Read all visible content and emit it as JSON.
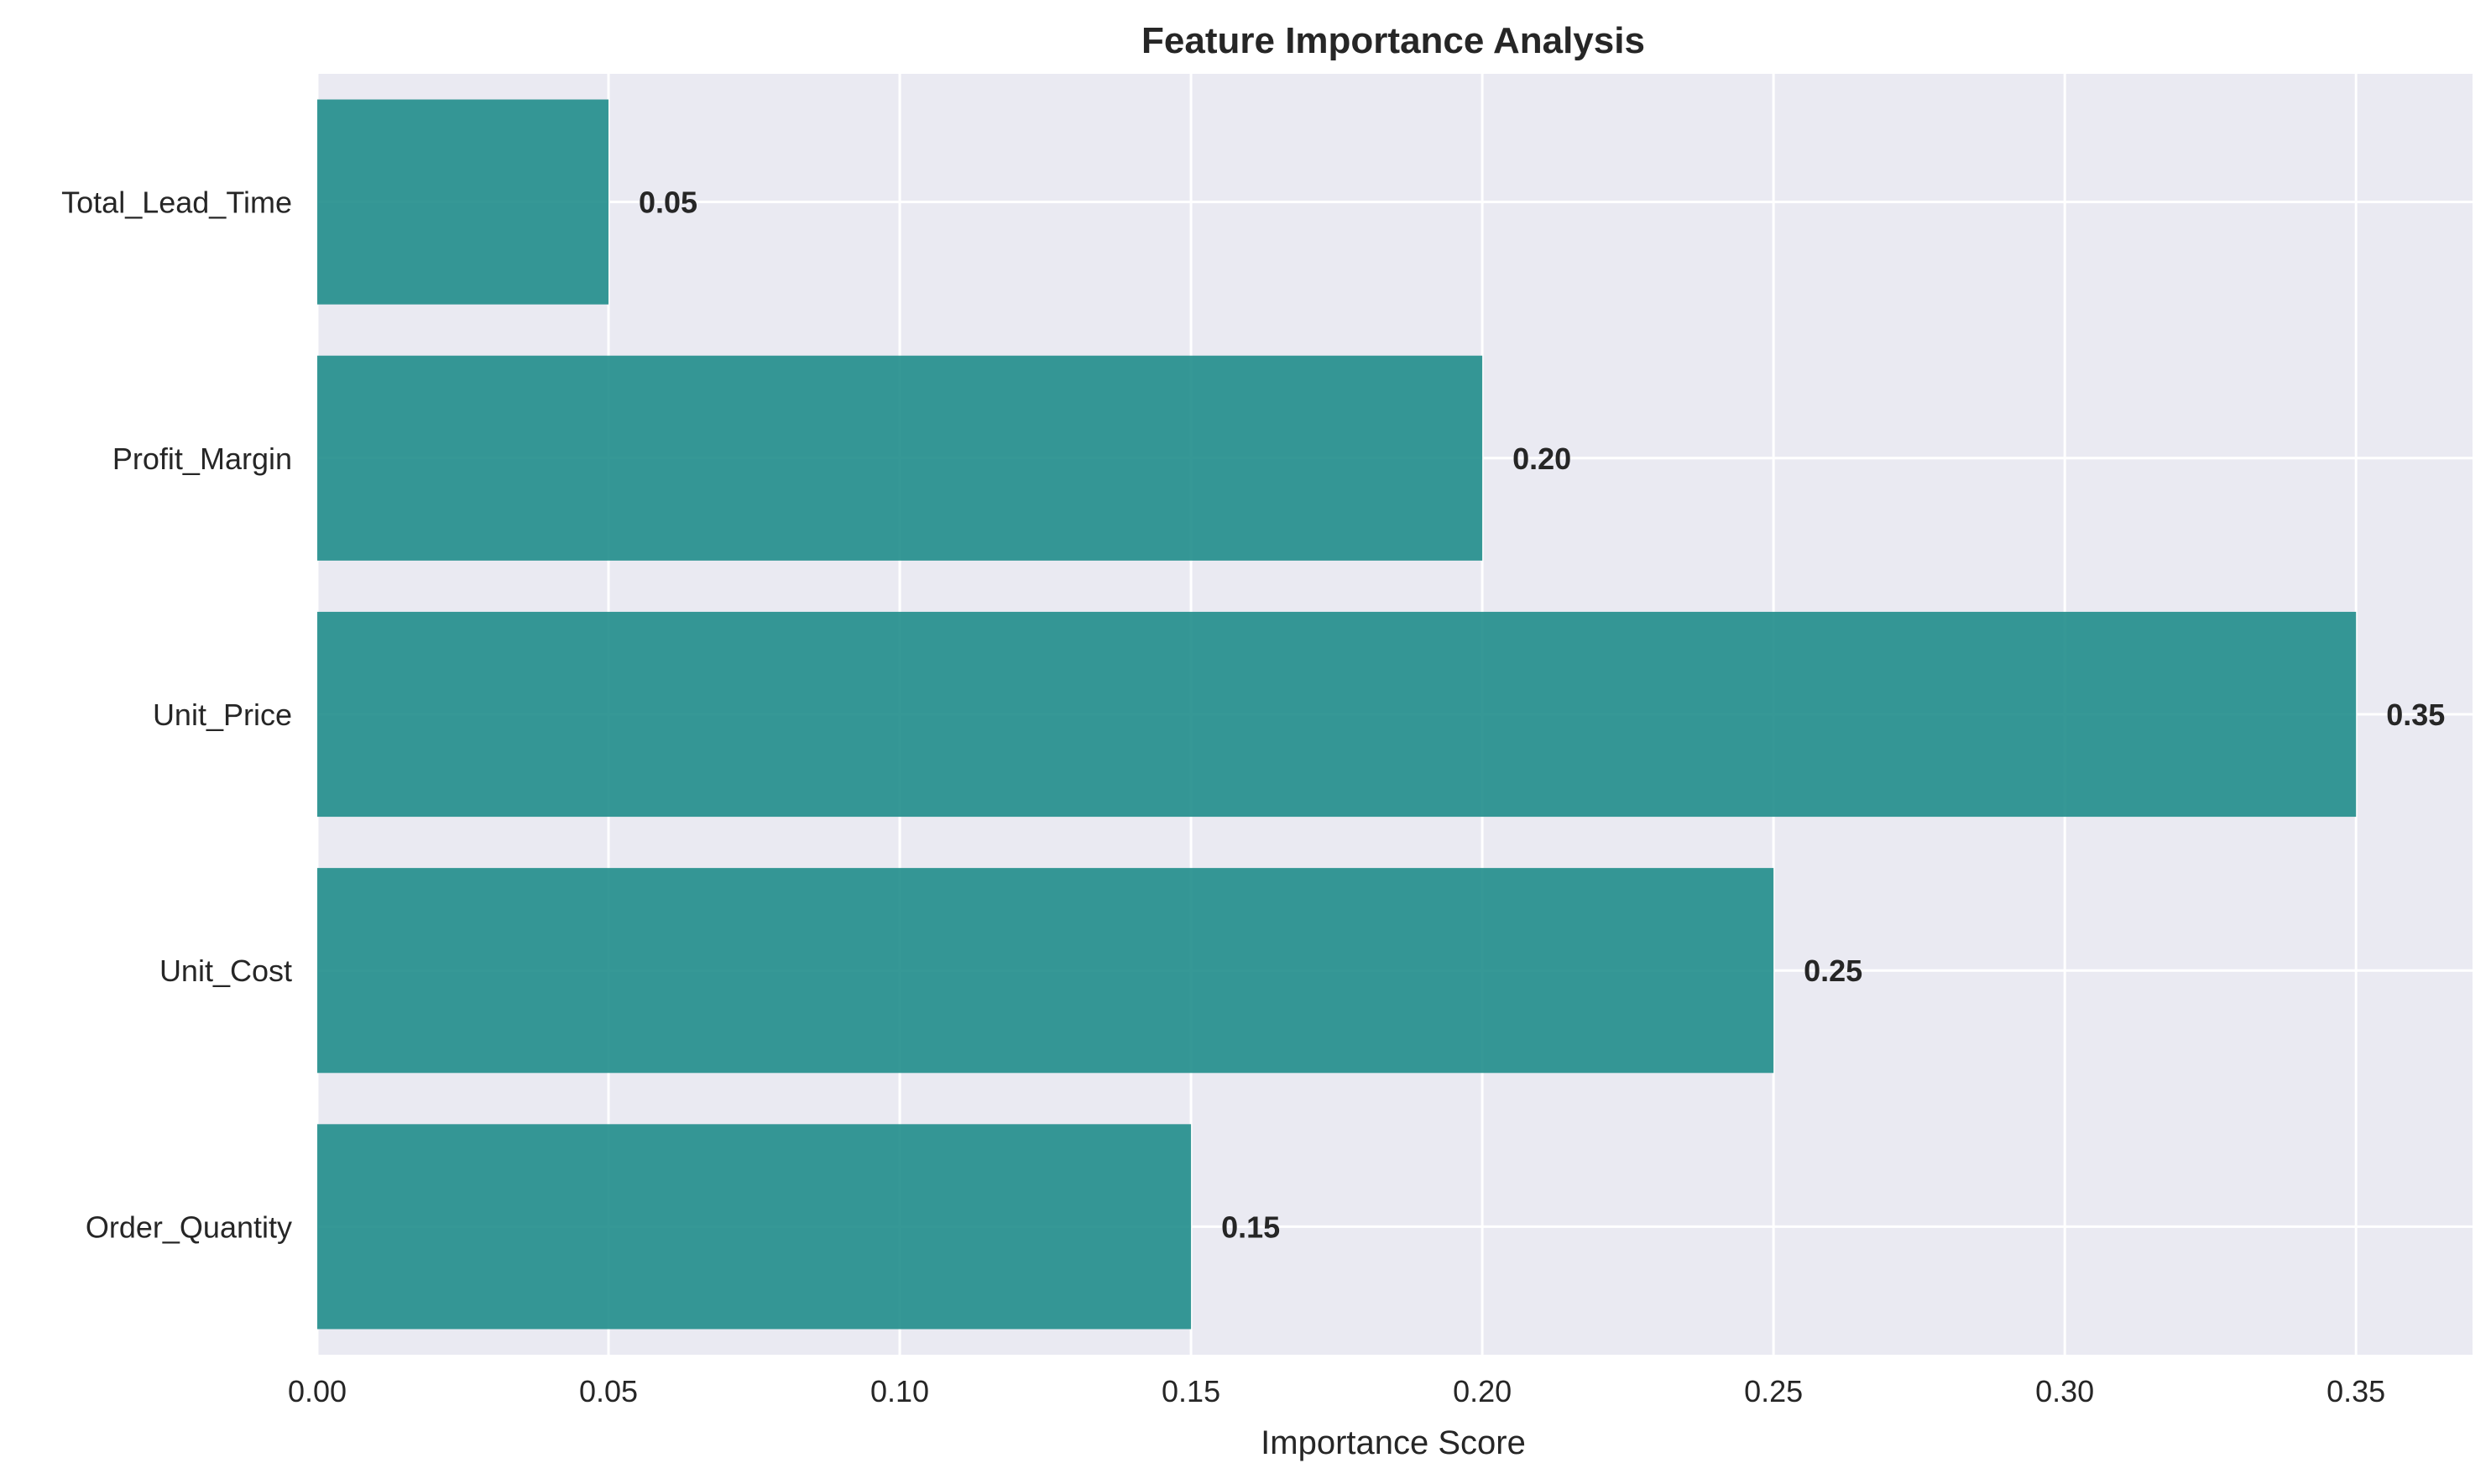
{
  "chart_data": {
    "type": "bar",
    "orientation": "horizontal",
    "title": "Feature Importance Analysis",
    "xlabel": "Importance Score",
    "ylabel": "",
    "categories": [
      "Order_Quantity",
      "Unit_Cost",
      "Unit_Price",
      "Profit_Margin",
      "Total_Lead_Time"
    ],
    "values": [
      0.15,
      0.25,
      0.35,
      0.2,
      0.05
    ],
    "value_labels": [
      "0.15",
      "0.25",
      "0.35",
      "0.20",
      "0.05"
    ],
    "xlim": [
      0,
      0.37
    ],
    "xticks": [
      0.0,
      0.05,
      0.1,
      0.15,
      0.2,
      0.25,
      0.3,
      0.35
    ],
    "xtick_labels": [
      "0.00",
      "0.05",
      "0.10",
      "0.15",
      "0.20",
      "0.25",
      "0.30",
      "0.35"
    ],
    "grid": true,
    "colors": {
      "bar": "#1a8a87",
      "plot_background": "#eaeaf2",
      "grid": "#ffffff"
    }
  }
}
